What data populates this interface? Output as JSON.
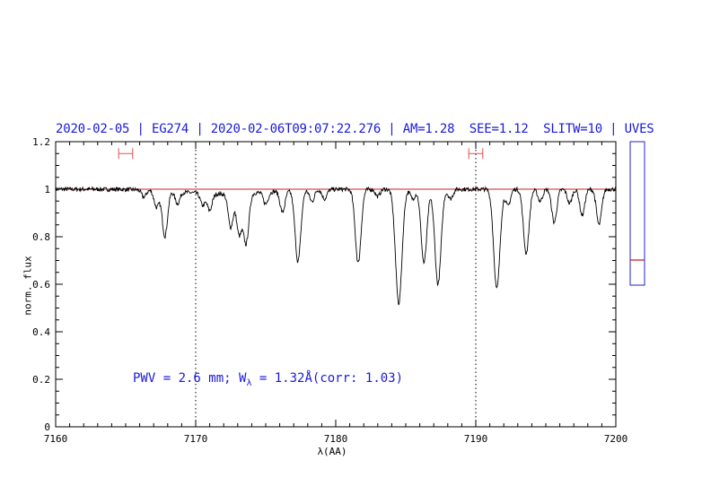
{
  "header": {
    "text": "2020-02-05 | EG274 | 2020-02-06T09:07:22.276 | AM=1.28  SEE=1.12  SLITW=10 | UVES"
  },
  "annotation": {
    "prefix": "PWV = 2.6 mm; W",
    "subscript": "λ",
    "suffix": " = 1.32Å(corr: 1.03)"
  },
  "colors": {
    "header": "#1a1adb",
    "spectrum": "#000000",
    "continuum": "#cc2222",
    "marker": "#e05050",
    "sidebar": "#2222cc",
    "sidebar_level": "#cc1111"
  },
  "chart_data": {
    "type": "line",
    "xlabel": "λ(AA)",
    "ylabel": "norm. flux",
    "xlim": [
      7160,
      7200
    ],
    "ylim": [
      0,
      1.2
    ],
    "xticks": [
      7160,
      7170,
      7180,
      7190,
      7200
    ],
    "yticks": [
      0,
      0.2,
      0.4,
      0.6,
      0.8,
      1,
      1.2
    ],
    "ytick_labels": [
      "0",
      "0.2",
      "0.4",
      "0.6",
      "0.8",
      "1",
      "1.2"
    ],
    "continuum_level": 1.0,
    "vertical_markers": [
      7170,
      7190
    ],
    "range_markers": [
      {
        "x0": 7164.5,
        "x1": 7165.5,
        "y": 1.15
      },
      {
        "x0": 7189.5,
        "x1": 7190.5,
        "y": 1.15
      }
    ],
    "absorption_lines": [
      {
        "x": 7166.3,
        "depth": 0.03
      },
      {
        "x": 7167.2,
        "depth": 0.07
      },
      {
        "x": 7167.8,
        "depth": 0.19
      },
      {
        "x": 7168.7,
        "depth": 0.05
      },
      {
        "x": 7170.5,
        "depth": 0.05
      },
      {
        "x": 7171.0,
        "depth": 0.07
      },
      {
        "x": 7172.5,
        "depth": 0.14
      },
      {
        "x": 7173.1,
        "depth": 0.17
      },
      {
        "x": 7173.6,
        "depth": 0.21
      },
      {
        "x": 7175.0,
        "depth": 0.05
      },
      {
        "x": 7176.2,
        "depth": 0.09
      },
      {
        "x": 7177.3,
        "depth": 0.3
      },
      {
        "x": 7178.3,
        "depth": 0.05
      },
      {
        "x": 7179.2,
        "depth": 0.04
      },
      {
        "x": 7181.6,
        "depth": 0.31
      },
      {
        "x": 7183.0,
        "depth": 0.03
      },
      {
        "x": 7184.5,
        "depth": 0.48
      },
      {
        "x": 7185.5,
        "depth": 0.04
      },
      {
        "x": 7186.3,
        "depth": 0.31
      },
      {
        "x": 7187.3,
        "depth": 0.4
      },
      {
        "x": 7188.2,
        "depth": 0.04
      },
      {
        "x": 7191.5,
        "depth": 0.42
      },
      {
        "x": 7192.3,
        "depth": 0.07
      },
      {
        "x": 7193.6,
        "depth": 0.27
      },
      {
        "x": 7194.6,
        "depth": 0.05
      },
      {
        "x": 7195.6,
        "depth": 0.14
      },
      {
        "x": 7196.7,
        "depth": 0.06
      },
      {
        "x": 7197.6,
        "depth": 0.11
      },
      {
        "x": 7198.8,
        "depth": 0.15
      }
    ],
    "sidebar_level": 0.7,
    "grid": false
  }
}
